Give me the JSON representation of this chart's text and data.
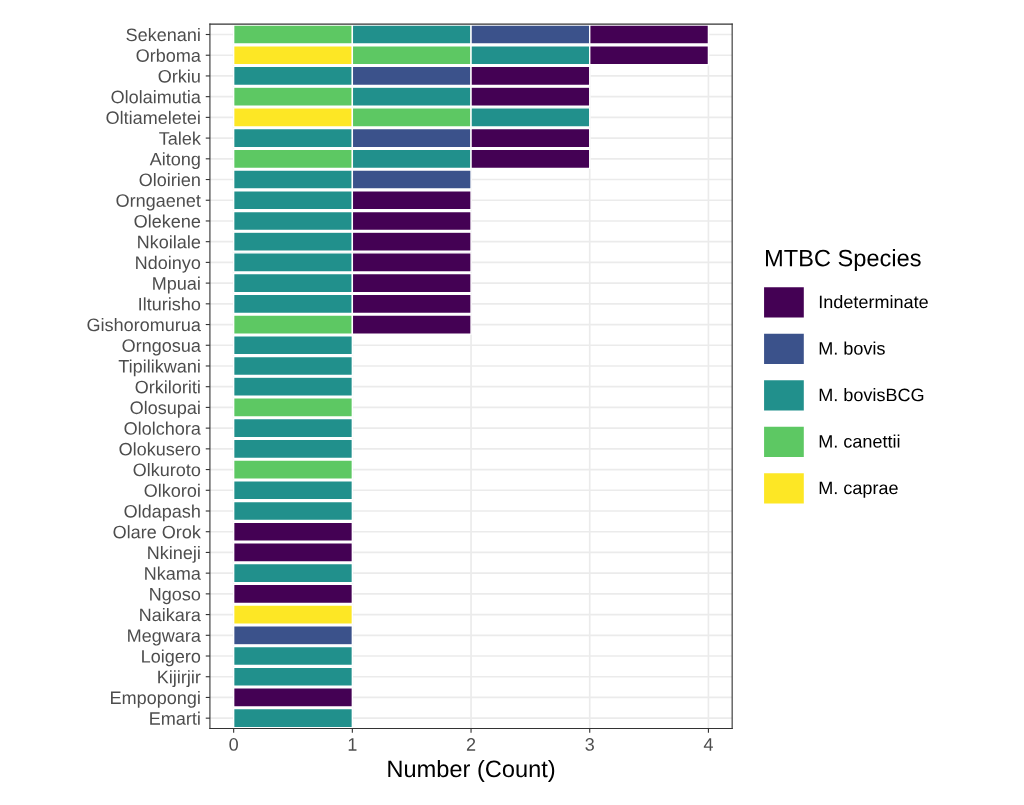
{
  "chart_data": {
    "type": "bar",
    "orientation": "horizontal",
    "stacked": true,
    "xlabel": "Number (Count)",
    "legend_title": "MTBC Species",
    "legend": "right",
    "grid": true,
    "xlim": [
      -0.2,
      4.2
    ],
    "xticks": [
      0,
      1,
      2,
      3,
      4
    ],
    "categories": [
      "Sekenani",
      "Orboma",
      "Orkiu",
      "Ololaimutia",
      "Oltiameletei",
      "Talek",
      "Aitong",
      "Oloirien",
      "Orngaenet",
      "Olekene",
      "Nkoilale",
      "Ndoinyo",
      "Mpuai",
      "Ilturisho",
      "Gishoromurua",
      "Orngosua",
      "Tipilikwani",
      "Orkiloriti",
      "Olosupai",
      "Ololchora",
      "Olokusero",
      "Olkuroto",
      "Olkoroi",
      "Oldapash",
      "Olare Orok",
      "Nkineji",
      "Nkama",
      "Ngoso",
      "Naikara",
      "Megwara",
      "Loigero",
      "Kijirjir",
      "Empopongi",
      "Emarti"
    ],
    "series": [
      {
        "name": "M. caprae",
        "color": "#fde725",
        "values": [
          null,
          1,
          null,
          null,
          1,
          null,
          null,
          null,
          null,
          null,
          null,
          null,
          null,
          null,
          null,
          null,
          null,
          null,
          null,
          null,
          null,
          null,
          null,
          null,
          null,
          null,
          null,
          null,
          1,
          null,
          null,
          null,
          null,
          null
        ]
      },
      {
        "name": "M. canettii",
        "color": "#5dc863",
        "values": [
          1,
          1,
          null,
          1,
          1,
          null,
          1,
          null,
          null,
          null,
          null,
          null,
          null,
          null,
          1,
          null,
          null,
          null,
          1,
          null,
          null,
          1,
          null,
          null,
          null,
          null,
          null,
          null,
          null,
          null,
          null,
          null,
          null,
          null
        ]
      },
      {
        "name": "M. bovisBCG",
        "color": "#21908c",
        "values": [
          1,
          1,
          1,
          1,
          1,
          1,
          1,
          1,
          1,
          1,
          1,
          1,
          1,
          1,
          null,
          1,
          1,
          1,
          null,
          1,
          1,
          null,
          1,
          1,
          null,
          null,
          1,
          null,
          null,
          null,
          1,
          1,
          null,
          1
        ]
      },
      {
        "name": "M. bovis",
        "color": "#3b528b",
        "values": [
          1,
          null,
          1,
          null,
          null,
          1,
          null,
          1,
          null,
          null,
          null,
          null,
          null,
          null,
          null,
          null,
          null,
          null,
          null,
          null,
          null,
          null,
          null,
          null,
          null,
          null,
          null,
          null,
          null,
          1,
          null,
          null,
          null,
          null
        ]
      },
      {
        "name": "Indeterminate",
        "color": "#440154",
        "values": [
          1,
          1,
          1,
          1,
          null,
          1,
          1,
          null,
          1,
          1,
          1,
          1,
          1,
          1,
          1,
          null,
          null,
          null,
          null,
          null,
          null,
          null,
          null,
          null,
          1,
          1,
          null,
          1,
          null,
          null,
          null,
          null,
          1,
          null
        ]
      }
    ]
  }
}
